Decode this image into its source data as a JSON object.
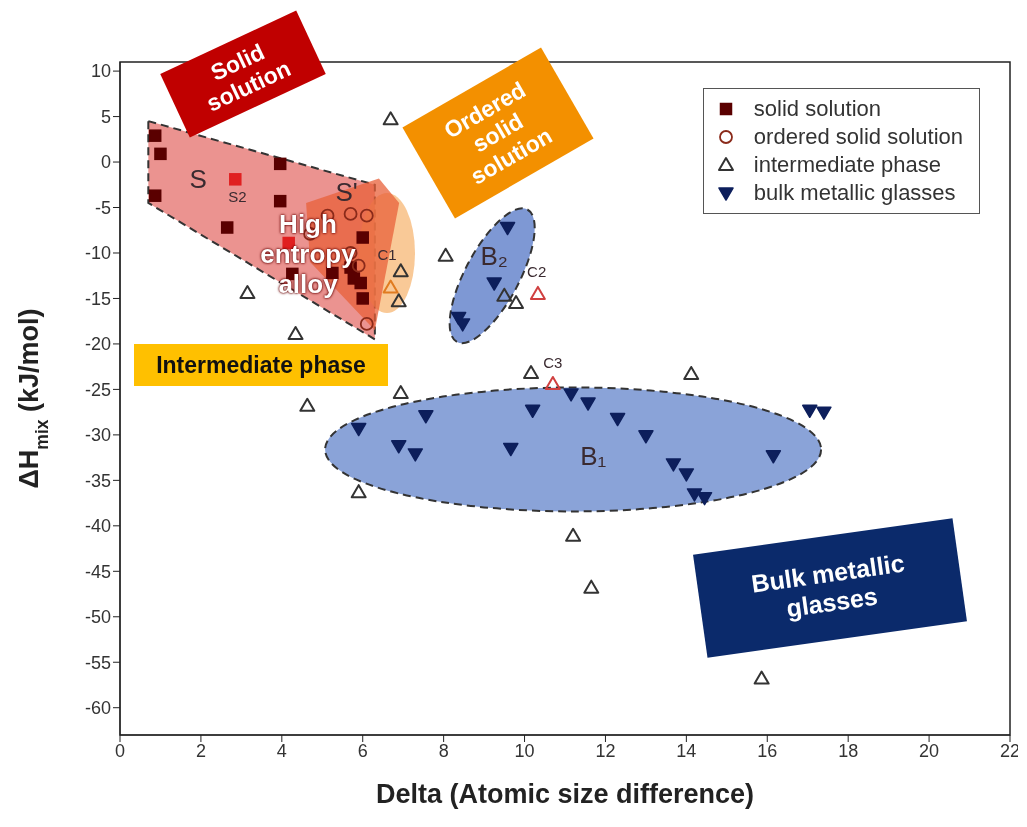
{
  "chart_data": {
    "type": "scatter",
    "xlabel": "Delta (Atomic size difference)",
    "ylabel": "ΔH$_{mix}$ (kJ/mol)",
    "xlim": [
      0,
      22
    ],
    "xticks": [
      0,
      2,
      4,
      6,
      8,
      10,
      12,
      14,
      16,
      18,
      20,
      22
    ],
    "ylim": [
      -63,
      11
    ],
    "yticks": [
      -60,
      -55,
      -50,
      -45,
      -40,
      -35,
      -30,
      -25,
      -20,
      -15,
      -10,
      -5,
      0,
      5,
      10
    ],
    "legend": "top right",
    "grid": false,
    "series": [
      {
        "name": "solid solution",
        "marker": "square",
        "color": "#5a0000",
        "x": [
          0.87,
          1.0,
          0.87,
          2.85,
          2.65,
          3.96,
          3.96,
          4.17,
          4.26,
          5.25,
          5.7,
          5.78,
          5.95,
          6.0,
          6.0
        ],
        "values": [
          2.9,
          0.9,
          -3.7,
          -1.9,
          -7.2,
          -0.2,
          -4.3,
          -8.9,
          -12.3,
          -12.2,
          -11.6,
          -12.8,
          -13.3,
          -8.3,
          -15.0
        ],
        "colors": [
          "#5a0000",
          "#5a0000",
          "#5a0000",
          "#e02020",
          "#5a0000",
          "#5a0000",
          "#5a0000",
          "#e02020",
          "#5a0000",
          "#5a0000",
          "#5a0000",
          "#5a0000",
          "#5a0000",
          "#5a0000",
          "#5a0000"
        ]
      },
      {
        "name": "ordered solid solution",
        "marker": "circle",
        "color": "#8a2a1a",
        "x": [
          4.7,
          5.13,
          5.7,
          6.1,
          5.7,
          5.9,
          6.1
        ],
        "values": [
          -7.9,
          -5.9,
          -5.7,
          -5.9,
          -10.0,
          -11.4,
          -17.8
        ]
      },
      {
        "name": "intermediate phase",
        "marker": "triangle",
        "color": "#333333",
        "x": [
          3.15,
          4.34,
          6.69,
          6.69,
          6.94,
          6.89,
          8.05,
          9.5,
          9.79,
          10.33,
          10.16,
          10.7,
          4.63,
          6.94,
          5.9,
          11.2,
          14.12,
          11.65,
          15.86
        ],
        "values": [
          -14.4,
          -18.9,
          4.7,
          -13.8,
          -12.0,
          -15.3,
          -10.3,
          -14.7,
          -15.5,
          -14.5,
          -23.2,
          -24.4,
          -26.8,
          -25.4,
          -36.3,
          -41.1,
          -23.3,
          -46.8,
          -56.8
        ],
        "colors": [
          "#333333",
          "#333333",
          "#333333",
          "#e07b20",
          "#333333",
          "#333333",
          "#333333",
          "#333333",
          "#333333",
          "#d04040",
          "#333333",
          "#d04040",
          "#333333",
          "#333333",
          "#333333",
          "#333333",
          "#333333",
          "#333333",
          "#333333"
        ]
      },
      {
        "name": "bulk metallic glasses",
        "marker": "triangle-down",
        "color": "#0d1f5c",
        "x": [
          9.58,
          9.25,
          8.37,
          8.47,
          5.9,
          7.56,
          6.89,
          7.3,
          9.66,
          10.2,
          11.15,
          11.57,
          12.3,
          13.0,
          13.68,
          14.0,
          14.2,
          14.45,
          17.05,
          17.4,
          16.15
        ],
        "values": [
          -7.2,
          -13.3,
          -17.1,
          -17.8,
          -29.3,
          -27.9,
          -31.2,
          -32.1,
          -31.5,
          -27.3,
          -25.5,
          -26.5,
          -28.2,
          -30.1,
          -33.2,
          -34.3,
          -36.5,
          -36.9,
          -27.3,
          -27.5,
          -32.3
        ]
      }
    ],
    "annotations": [
      "Solid solution",
      "High entropy alloy",
      "Ordered solid solution",
      "Intermediate phase",
      "Bulk metallic glasses",
      "S",
      "S'",
      "S2",
      "C1",
      "C2",
      "C3",
      "B₂",
      "B₁"
    ]
  }
}
